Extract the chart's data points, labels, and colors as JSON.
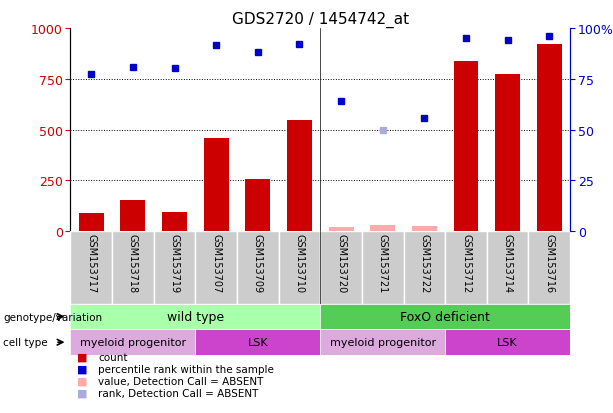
{
  "title": "GDS2720 / 1454742_at",
  "samples": [
    "GSM153717",
    "GSM153718",
    "GSM153719",
    "GSM153707",
    "GSM153709",
    "GSM153710",
    "GSM153720",
    "GSM153721",
    "GSM153722",
    "GSM153712",
    "GSM153714",
    "GSM153716"
  ],
  "count_values": [
    90,
    155,
    95,
    460,
    255,
    545,
    22,
    30,
    28,
    840,
    775,
    920
  ],
  "count_absent": [
    false,
    false,
    false,
    false,
    false,
    false,
    true,
    true,
    true,
    false,
    false,
    false
  ],
  "rank_values": [
    775,
    810,
    805,
    915,
    880,
    920,
    640,
    500,
    555,
    950,
    940,
    960
  ],
  "rank_absent": [
    false,
    false,
    false,
    false,
    false,
    false,
    false,
    true,
    false,
    false,
    false,
    false
  ],
  "ylim_left": [
    0,
    1000
  ],
  "ylim_right": [
    0,
    100
  ],
  "yticks_left": [
    0,
    250,
    500,
    750,
    1000
  ],
  "yticks_right": [
    0,
    25,
    50,
    75,
    100
  ],
  "bar_color_present": "#cc0000",
  "bar_color_absent": "#ffaaaa",
  "dot_color_present": "#0000cc",
  "dot_color_absent": "#aaaadd",
  "genotype_groups": [
    {
      "label": "wild type",
      "start": 0,
      "end": 6,
      "color": "#aaffaa"
    },
    {
      "label": "FoxO deficient",
      "start": 6,
      "end": 12,
      "color": "#55cc55"
    }
  ],
  "cell_type_groups": [
    {
      "label": "myeloid progenitor",
      "start": 0,
      "end": 3,
      "color": "#ddaadd"
    },
    {
      "label": "LSK",
      "start": 3,
      "end": 6,
      "color": "#cc44cc"
    },
    {
      "label": "myeloid progenitor",
      "start": 6,
      "end": 9,
      "color": "#ddaadd"
    },
    {
      "label": "LSK",
      "start": 9,
      "end": 12,
      "color": "#cc44cc"
    }
  ],
  "legend_items": [
    {
      "label": "count",
      "color": "#cc0000"
    },
    {
      "label": "percentile rank within the sample",
      "color": "#0000cc"
    },
    {
      "label": "value, Detection Call = ABSENT",
      "color": "#ffaaaa"
    },
    {
      "label": "rank, Detection Call = ABSENT",
      "color": "#aaaadd"
    }
  ],
  "title_fontsize": 11
}
